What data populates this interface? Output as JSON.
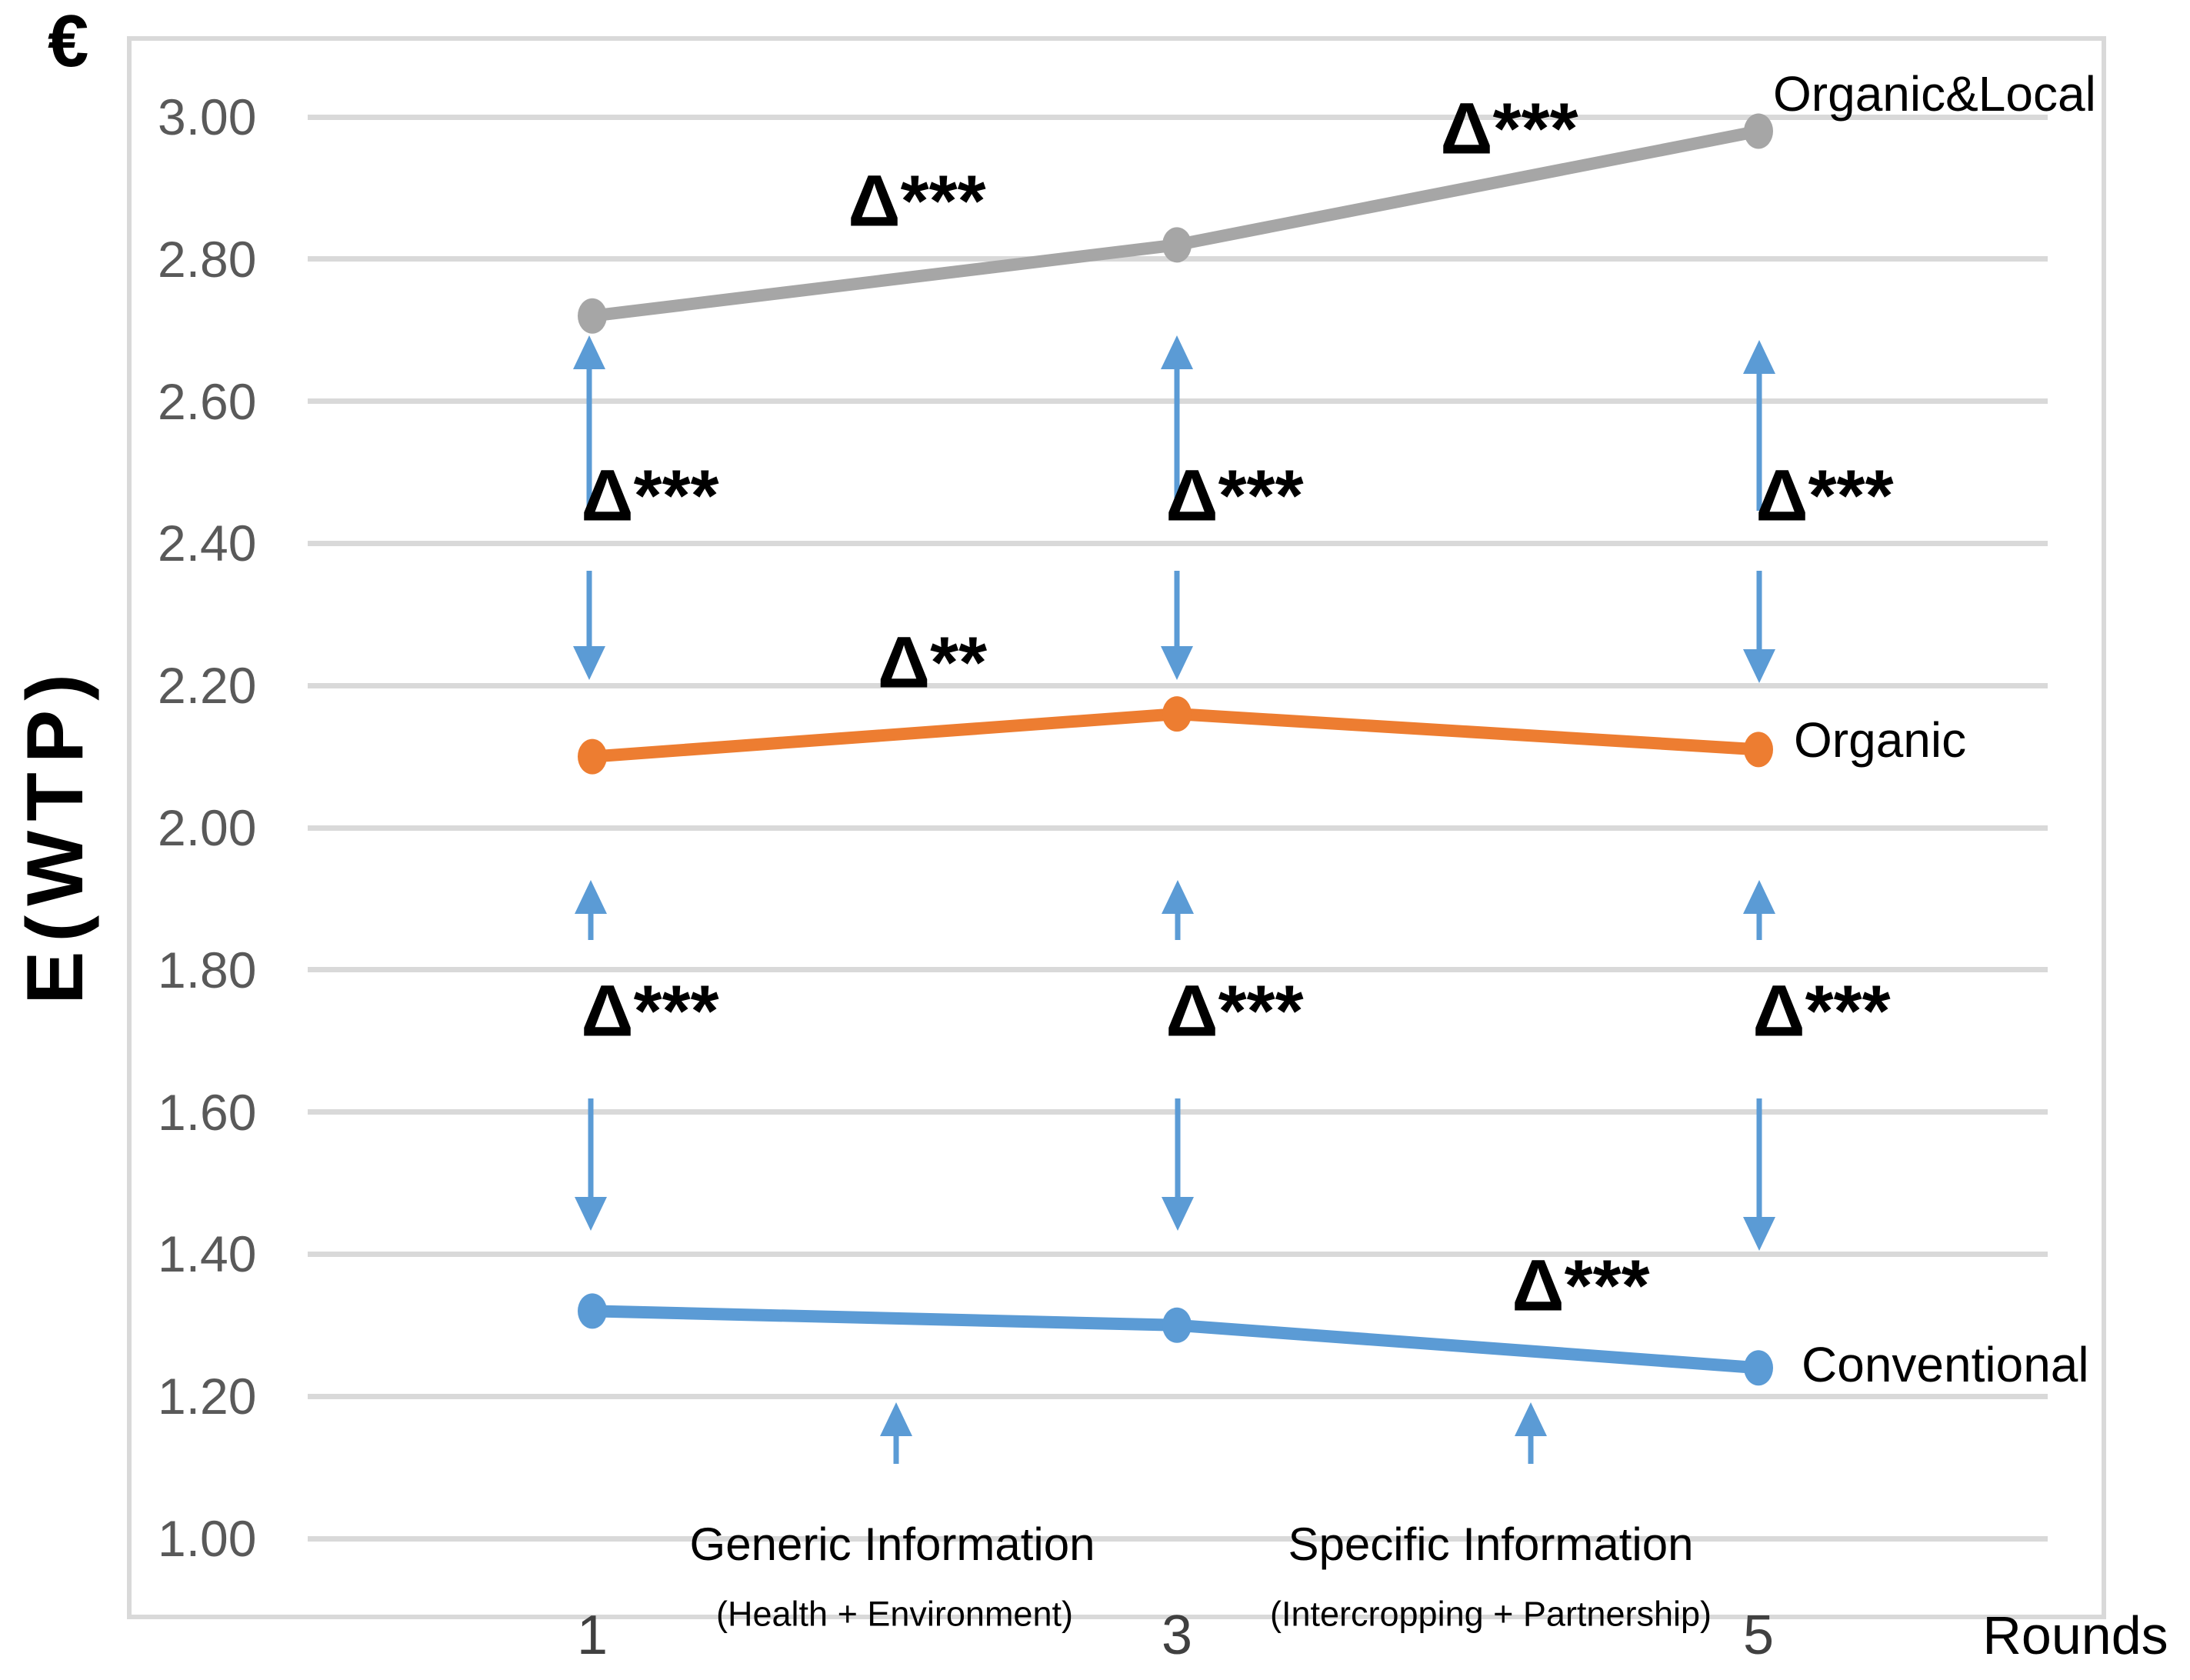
{
  "chart_data": {
    "type": "line",
    "title": "",
    "xlabel": "Rounds",
    "ylabel": "E(WTP)",
    "currency_symbol": "€",
    "x": [
      1,
      3,
      5
    ],
    "xtick_labels": [
      "1",
      "3",
      "5"
    ],
    "ytick_labels": [
      "3.00",
      "2.80",
      "2.60",
      "2.40",
      "2.20",
      "2.00",
      "1.80",
      "1.60",
      "1.40",
      "1.20",
      "1.00"
    ],
    "ylim": [
      1.0,
      3.0
    ],
    "grid": true,
    "legend_position": "end-of-line-labels",
    "gridline_color": "#d9d9d9",
    "axis_text_color": "#595959",
    "arrow_color": "#5b9bd5",
    "series": [
      {
        "name": "Organic&Local",
        "color": "#a6a6a6",
        "values": [
          2.72,
          2.82,
          2.98
        ]
      },
      {
        "name": "Organic",
        "color": "#ed7d31",
        "values": [
          2.1,
          2.16,
          2.11
        ]
      },
      {
        "name": "Conventional",
        "color": "#5b9bd5",
        "values": [
          1.32,
          1.3,
          1.24
        ]
      }
    ]
  },
  "annotations": {
    "gray_seg_1_3": "Δ***",
    "gray_seg_3_5": "Δ***",
    "orange_seg_1_3": "Δ**",
    "blue_seg_3_5": "Δ***",
    "gap_top_r1": "Δ***",
    "gap_top_r3": "Δ***",
    "gap_top_r5": "Δ***",
    "gap_bottom_r1": "Δ***",
    "gap_bottom_r3": "Δ***",
    "gap_bottom_r5": "Δ***"
  },
  "info": {
    "generic_title": "Generic Information",
    "generic_subtitle": "(Health + Environment)",
    "specific_title": "Specific Information",
    "specific_subtitle": "(Intercropping + Partnership)"
  }
}
